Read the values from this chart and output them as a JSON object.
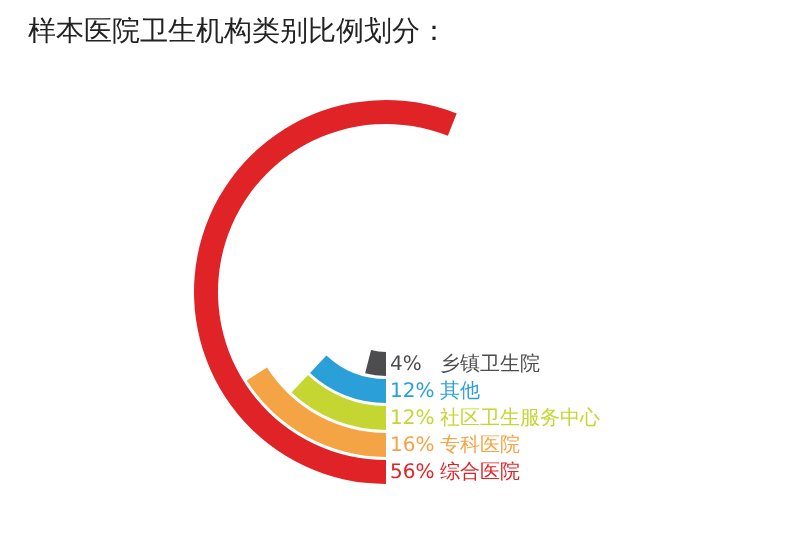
{
  "chart_data": {
    "type": "other",
    "title": "样本医院卫生机构类别比例划分：",
    "categories": [
      "乡镇卫生院",
      "其他",
      "社区卫生服务中心",
      "专科医院",
      "综合医院"
    ],
    "values": [
      4,
      12,
      12,
      16,
      56
    ],
    "value_labels": [
      "4%",
      "12%",
      "12%",
      "16%",
      "56%"
    ],
    "colors": [
      "#4d4d4f",
      "#2a9fd8",
      "#c5d531",
      "#f4a444",
      "#e02327"
    ]
  }
}
